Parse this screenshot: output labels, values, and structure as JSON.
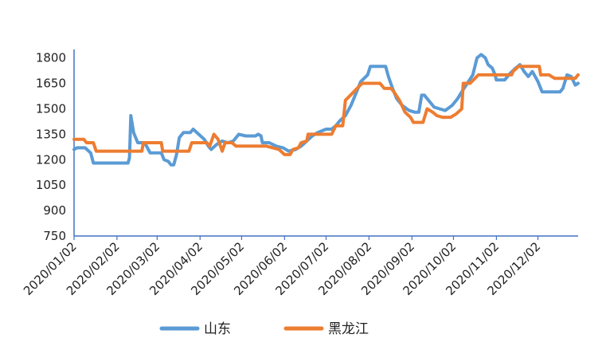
{
  "chart_data": {
    "type": "line",
    "title": "",
    "xlabel": "",
    "ylabel": "",
    "ylim": [
      750,
      1850
    ],
    "yticks": [
      750,
      900,
      1050,
      1200,
      1350,
      1500,
      1650,
      1800
    ],
    "x_start": "2020-01-02",
    "x_end": "2020-12-31",
    "xticks": [
      "2020/01/02",
      "2020/02/02",
      "2020/03/02",
      "2020/04/02",
      "2020/05/02",
      "2020/06/02",
      "2020/07/02",
      "2020/08/02",
      "2020/09/02",
      "2020/10/02",
      "2020/11/02",
      "2020/12/02"
    ],
    "legend_position": "bottom",
    "series": [
      {
        "name": "山东",
        "color": "#5B9BD5",
        "points": [
          [
            "2020-01-02",
            1260
          ],
          [
            "2020-01-04",
            1270
          ],
          [
            "2020-01-10",
            1270
          ],
          [
            "2020-01-14",
            1240
          ],
          [
            "2020-01-15",
            1210
          ],
          [
            "2020-01-16",
            1180
          ],
          [
            "2020-01-25",
            1180
          ],
          [
            "2020-02-08",
            1180
          ],
          [
            "2020-02-10",
            1180
          ],
          [
            "2020-02-11",
            1210
          ],
          [
            "2020-02-12",
            1460
          ],
          [
            "2020-02-14",
            1360
          ],
          [
            "2020-02-15",
            1340
          ],
          [
            "2020-02-17",
            1300
          ],
          [
            "2020-02-22",
            1300
          ],
          [
            "2020-02-26",
            1240
          ],
          [
            "2020-03-05",
            1240
          ],
          [
            "2020-03-07",
            1200
          ],
          [
            "2020-03-10",
            1190
          ],
          [
            "2020-03-12",
            1170
          ],
          [
            "2020-03-14",
            1170
          ],
          [
            "2020-03-16",
            1230
          ],
          [
            "2020-03-18",
            1330
          ],
          [
            "2020-03-21",
            1360
          ],
          [
            "2020-03-26",
            1360
          ],
          [
            "2020-03-28",
            1380
          ],
          [
            "2020-04-01",
            1350
          ],
          [
            "2020-04-05",
            1320
          ],
          [
            "2020-04-08",
            1280
          ],
          [
            "2020-04-10",
            1260
          ],
          [
            "2020-04-14",
            1290
          ],
          [
            "2020-04-18",
            1310
          ],
          [
            "2020-04-22",
            1300
          ],
          [
            "2020-04-26",
            1310
          ],
          [
            "2020-04-30",
            1350
          ],
          [
            "2020-05-05",
            1340
          ],
          [
            "2020-05-12",
            1340
          ],
          [
            "2020-05-14",
            1350
          ],
          [
            "2020-05-16",
            1340
          ],
          [
            "2020-05-17",
            1300
          ],
          [
            "2020-05-22",
            1300
          ],
          [
            "2020-05-27",
            1280
          ],
          [
            "2020-06-01",
            1270
          ],
          [
            "2020-06-05",
            1250
          ],
          [
            "2020-06-10",
            1260
          ],
          [
            "2020-06-14",
            1280
          ],
          [
            "2020-06-18",
            1310
          ],
          [
            "2020-06-22",
            1340
          ],
          [
            "2020-06-26",
            1360
          ],
          [
            "2020-06-29",
            1370
          ],
          [
            "2020-07-02",
            1380
          ],
          [
            "2020-07-06",
            1380
          ],
          [
            "2020-07-09",
            1400
          ],
          [
            "2020-07-12",
            1430
          ],
          [
            "2020-07-16",
            1460
          ],
          [
            "2020-07-20",
            1520
          ],
          [
            "2020-07-24",
            1600
          ],
          [
            "2020-07-27",
            1660
          ],
          [
            "2020-08-01",
            1700
          ],
          [
            "2020-08-03",
            1750
          ],
          [
            "2020-08-10",
            1750
          ],
          [
            "2020-08-14",
            1750
          ],
          [
            "2020-08-16",
            1690
          ],
          [
            "2020-08-19",
            1620
          ],
          [
            "2020-08-22",
            1560
          ],
          [
            "2020-08-26",
            1520
          ],
          [
            "2020-08-31",
            1490
          ],
          [
            "2020-09-04",
            1480
          ],
          [
            "2020-09-07",
            1480
          ],
          [
            "2020-09-09",
            1580
          ],
          [
            "2020-09-11",
            1580
          ],
          [
            "2020-09-13",
            1560
          ],
          [
            "2020-09-15",
            1540
          ],
          [
            "2020-09-18",
            1510
          ],
          [
            "2020-09-22",
            1500
          ],
          [
            "2020-09-26",
            1490
          ],
          [
            "2020-10-01",
            1520
          ],
          [
            "2020-10-05",
            1560
          ],
          [
            "2020-10-08",
            1600
          ],
          [
            "2020-10-12",
            1650
          ],
          [
            "2020-10-16",
            1700
          ],
          [
            "2020-10-19",
            1800
          ],
          [
            "2020-10-22",
            1820
          ],
          [
            "2020-10-25",
            1800
          ],
          [
            "2020-10-27",
            1760
          ],
          [
            "2020-10-30",
            1740
          ],
          [
            "2020-11-01",
            1700
          ],
          [
            "2020-11-02",
            1670
          ],
          [
            "2020-11-08",
            1670
          ],
          [
            "2020-11-12",
            1710
          ],
          [
            "2020-11-16",
            1740
          ],
          [
            "2020-11-19",
            1760
          ],
          [
            "2020-11-22",
            1720
          ],
          [
            "2020-11-25",
            1690
          ],
          [
            "2020-11-28",
            1720
          ],
          [
            "2020-12-02",
            1660
          ],
          [
            "2020-12-05",
            1600
          ],
          [
            "2020-12-12",
            1600
          ],
          [
            "2020-12-18",
            1600
          ],
          [
            "2020-12-20",
            1620
          ],
          [
            "2020-12-23",
            1700
          ],
          [
            "2020-12-26",
            1690
          ],
          [
            "2020-12-29",
            1640
          ],
          [
            "2020-12-31",
            1650
          ]
        ]
      },
      {
        "name": "黑龙江",
        "color": "#ED7D31",
        "points": [
          [
            "2020-01-02",
            1320
          ],
          [
            "2020-01-09",
            1320
          ],
          [
            "2020-01-11",
            1300
          ],
          [
            "2020-01-16",
            1300
          ],
          [
            "2020-01-18",
            1250
          ],
          [
            "2020-02-15",
            1250
          ],
          [
            "2020-02-20",
            1250
          ],
          [
            "2020-02-21",
            1300
          ],
          [
            "2020-03-05",
            1300
          ],
          [
            "2020-03-06",
            1250
          ],
          [
            "2020-03-25",
            1250
          ],
          [
            "2020-03-27",
            1300
          ],
          [
            "2020-04-07",
            1300
          ],
          [
            "2020-04-09",
            1280
          ],
          [
            "2020-04-12",
            1350
          ],
          [
            "2020-04-15",
            1320
          ],
          [
            "2020-04-18",
            1250
          ],
          [
            "2020-04-20",
            1300
          ],
          [
            "2020-04-25",
            1300
          ],
          [
            "2020-04-28",
            1280
          ],
          [
            "2020-05-20",
            1280
          ],
          [
            "2020-05-29",
            1260
          ],
          [
            "2020-06-02",
            1230
          ],
          [
            "2020-06-06",
            1230
          ],
          [
            "2020-06-08",
            1260
          ],
          [
            "2020-06-12",
            1270
          ],
          [
            "2020-06-14",
            1300
          ],
          [
            "2020-06-18",
            1310
          ],
          [
            "2020-06-19",
            1350
          ],
          [
            "2020-07-06",
            1350
          ],
          [
            "2020-07-09",
            1400
          ],
          [
            "2020-07-14",
            1400
          ],
          [
            "2020-07-16",
            1550
          ],
          [
            "2020-07-22",
            1600
          ],
          [
            "2020-07-28",
            1650
          ],
          [
            "2020-08-10",
            1650
          ],
          [
            "2020-08-13",
            1620
          ],
          [
            "2020-08-18",
            1620
          ],
          [
            "2020-08-20",
            1600
          ],
          [
            "2020-08-24",
            1550
          ],
          [
            "2020-08-28",
            1480
          ],
          [
            "2020-09-01",
            1450
          ],
          [
            "2020-09-03",
            1420
          ],
          [
            "2020-09-10",
            1420
          ],
          [
            "2020-09-13",
            1500
          ],
          [
            "2020-09-17",
            1480
          ],
          [
            "2020-09-20",
            1460
          ],
          [
            "2020-09-24",
            1450
          ],
          [
            "2020-09-30",
            1450
          ],
          [
            "2020-10-04",
            1470
          ],
          [
            "2020-10-08",
            1500
          ],
          [
            "2020-10-09",
            1650
          ],
          [
            "2020-10-14",
            1650
          ],
          [
            "2020-10-20",
            1700
          ],
          [
            "2020-11-08",
            1700
          ],
          [
            "2020-11-13",
            1700
          ],
          [
            "2020-11-14",
            1720
          ],
          [
            "2020-11-18",
            1750
          ],
          [
            "2020-12-01",
            1750
          ],
          [
            "2020-12-03",
            1750
          ],
          [
            "2020-12-04",
            1700
          ],
          [
            "2020-12-10",
            1700
          ],
          [
            "2020-12-14",
            1680
          ],
          [
            "2020-12-29",
            1680
          ],
          [
            "2020-12-31",
            1700
          ]
        ]
      }
    ]
  }
}
